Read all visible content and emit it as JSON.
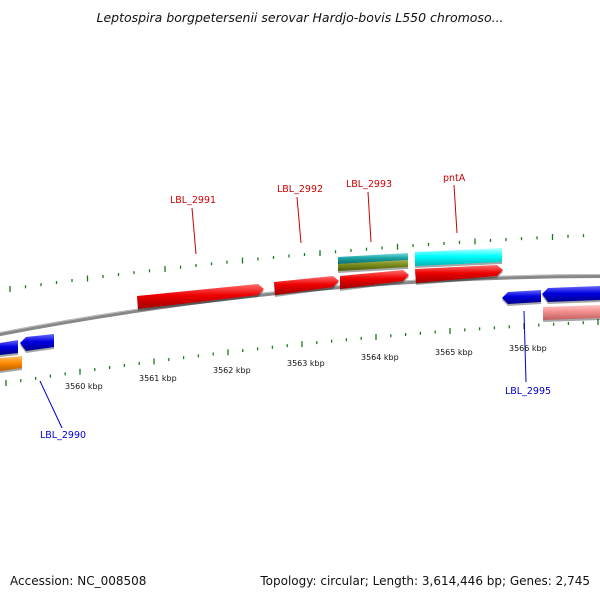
{
  "title": "Leptospira borgpetersenii serovar Hardjo-bovis L550 chromoso...",
  "accession": "Accession: NC_008508",
  "topology": "Topology: circular; Length: 3,614,446 bp; Genes: 2,745",
  "colors": {
    "forward_label": "#cc0000",
    "reverse_label": "#0000cc",
    "tick": "#1a7a1a",
    "backbone": "#808080"
  },
  "scale_labels": [
    "3560 kbp",
    "3561 kbp",
    "3562 kbp",
    "3563 kbp",
    "3564 kbp",
    "3565 kbp",
    "3566 kbp"
  ],
  "gene_labels": [
    {
      "text": "LBL_2991",
      "strand": "forward"
    },
    {
      "text": "LBL_2992",
      "strand": "forward"
    },
    {
      "text": "LBL_2993",
      "strand": "forward"
    },
    {
      "text": "pntA",
      "strand": "forward"
    },
    {
      "text": "LBL_2990",
      "strand": "reverse"
    },
    {
      "text": "LBL_2995",
      "strand": "reverse"
    }
  ]
}
